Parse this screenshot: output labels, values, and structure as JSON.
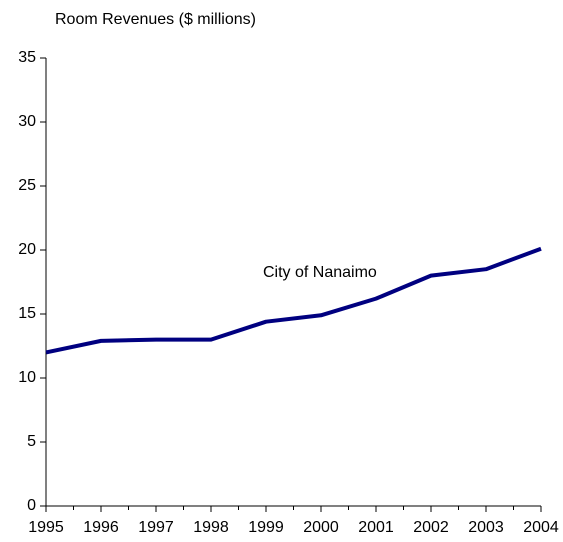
{
  "chart_data": {
    "type": "line",
    "title": "Room Revenues ($ millions)",
    "x": [
      1995,
      1996,
      1997,
      1998,
      1999,
      2000,
      2001,
      2002,
      2003,
      2004
    ],
    "series": [
      {
        "name": "City of Nanaimo",
        "color": "#000080",
        "values": [
          12.0,
          12.9,
          13.0,
          13.0,
          14.4,
          14.9,
          16.2,
          18.0,
          18.5,
          20.1
        ]
      }
    ],
    "xlim": [
      1995,
      2004
    ],
    "xticks": [
      1995,
      1996,
      1997,
      1998,
      1999,
      2000,
      2001,
      2002,
      2003,
      2004
    ],
    "ylim": [
      0,
      35
    ],
    "yticks": [
      0,
      5,
      10,
      15,
      20,
      25,
      30,
      35
    ],
    "grid": false
  }
}
